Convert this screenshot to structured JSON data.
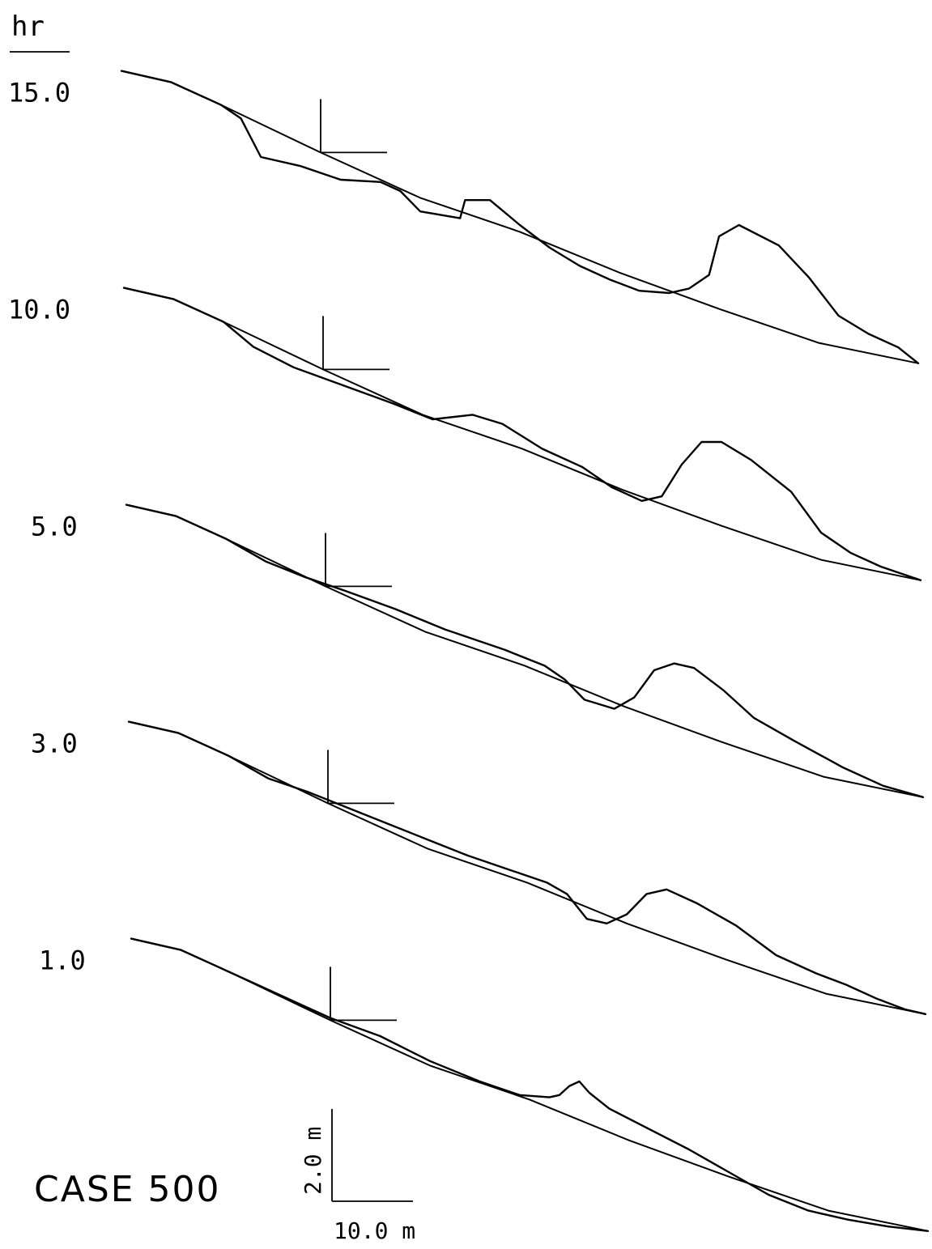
{
  "unit_label": "hr",
  "case_label": "CASE 500",
  "scale_bar": {
    "vertical_label": "2.0 m",
    "horizontal_label": "10.0 m"
  },
  "chart_data": {
    "type": "line",
    "description_units": {
      "x": "m",
      "z": "m"
    },
    "panels": [
      {
        "time_label": "15.0",
        "initial": [
          [
            0,
            6.8
          ],
          [
            5,
            6.3
          ],
          [
            10,
            5.3
          ],
          [
            20,
            3.2
          ],
          [
            30,
            1.2
          ],
          [
            40,
            -0.3
          ],
          [
            50,
            -2.1
          ],
          [
            60,
            -3.7
          ],
          [
            70,
            -5.2
          ],
          [
            80,
            -6.1
          ]
        ],
        "profile": [
          [
            0,
            6.8
          ],
          [
            5,
            6.3
          ],
          [
            10,
            5.3
          ],
          [
            12,
            4.7
          ],
          [
            14,
            3.0
          ],
          [
            18,
            2.6
          ],
          [
            22,
            2.0
          ],
          [
            26,
            1.9
          ],
          [
            28,
            1.5
          ],
          [
            30,
            0.6
          ],
          [
            34,
            0.3
          ],
          [
            34.5,
            1.1
          ],
          [
            37,
            1.1
          ],
          [
            40,
            0.0
          ],
          [
            43,
            -1.0
          ],
          [
            46,
            -1.8
          ],
          [
            49,
            -2.4
          ],
          [
            52,
            -2.9
          ],
          [
            55,
            -3.0
          ],
          [
            57,
            -2.8
          ],
          [
            59,
            -2.2
          ],
          [
            60,
            -0.5
          ],
          [
            62,
            0.0
          ],
          [
            66,
            -0.9
          ],
          [
            69,
            -2.3
          ],
          [
            72,
            -4.0
          ],
          [
            75,
            -4.8
          ],
          [
            78,
            -5.4
          ],
          [
            80,
            -6.1
          ]
        ]
      },
      {
        "time_label": "10.0",
        "initial": [
          [
            0,
            6.8
          ],
          [
            5,
            6.3
          ],
          [
            10,
            5.3
          ],
          [
            20,
            3.2
          ],
          [
            30,
            1.2
          ],
          [
            40,
            -0.3
          ],
          [
            50,
            -2.1
          ],
          [
            60,
            -3.7
          ],
          [
            70,
            -5.2
          ],
          [
            80,
            -6.1
          ]
        ],
        "profile": [
          [
            0,
            6.8
          ],
          [
            5,
            6.3
          ],
          [
            10,
            5.3
          ],
          [
            13,
            4.2
          ],
          [
            17,
            3.3
          ],
          [
            22,
            2.5
          ],
          [
            27,
            1.7
          ],
          [
            31,
            1.0
          ],
          [
            35,
            1.2
          ],
          [
            38,
            0.8
          ],
          [
            42,
            -0.3
          ],
          [
            46,
            -1.1
          ],
          [
            49,
            -2.0
          ],
          [
            52,
            -2.6
          ],
          [
            54,
            -2.4
          ],
          [
            56,
            -1.0
          ],
          [
            58,
            0.0
          ],
          [
            60,
            0.0
          ],
          [
            63,
            -0.8
          ],
          [
            67,
            -2.2
          ],
          [
            70,
            -4.0
          ],
          [
            73,
            -4.9
          ],
          [
            76,
            -5.5
          ],
          [
            80,
            -6.1
          ]
        ]
      },
      {
        "time_label": "5.0",
        "initial": [
          [
            0,
            6.8
          ],
          [
            5,
            6.3
          ],
          [
            10,
            5.3
          ],
          [
            20,
            3.2
          ],
          [
            30,
            1.2
          ],
          [
            40,
            -0.3
          ],
          [
            50,
            -2.1
          ],
          [
            60,
            -3.7
          ],
          [
            70,
            -5.2
          ],
          [
            80,
            -6.1
          ]
        ],
        "profile": [
          [
            0,
            6.8
          ],
          [
            5,
            6.3
          ],
          [
            10,
            5.3
          ],
          [
            14,
            4.3
          ],
          [
            18,
            3.6
          ],
          [
            22,
            3.0
          ],
          [
            27,
            2.2
          ],
          [
            32,
            1.3
          ],
          [
            38,
            0.4
          ],
          [
            42,
            -0.3
          ],
          [
            44,
            -0.9
          ],
          [
            46,
            -1.8
          ],
          [
            49,
            -2.2
          ],
          [
            51,
            -1.7
          ],
          [
            53,
            -0.5
          ],
          [
            55,
            -0.2
          ],
          [
            57,
            -0.4
          ],
          [
            60,
            -1.4
          ],
          [
            63,
            -2.6
          ],
          [
            67,
            -3.6
          ],
          [
            72,
            -4.8
          ],
          [
            76,
            -5.6
          ],
          [
            80,
            -6.1
          ]
        ]
      },
      {
        "time_label": "3.0",
        "initial": [
          [
            0,
            6.8
          ],
          [
            5,
            6.3
          ],
          [
            10,
            5.3
          ],
          [
            20,
            3.2
          ],
          [
            30,
            1.2
          ],
          [
            40,
            -0.3
          ],
          [
            50,
            -2.1
          ],
          [
            60,
            -3.7
          ],
          [
            70,
            -5.2
          ],
          [
            80,
            -6.1
          ]
        ],
        "profile": [
          [
            0,
            6.8
          ],
          [
            5,
            6.3
          ],
          [
            10,
            5.3
          ],
          [
            14,
            4.3
          ],
          [
            18,
            3.7
          ],
          [
            22,
            3.0
          ],
          [
            26,
            2.3
          ],
          [
            30,
            1.6
          ],
          [
            34,
            0.9
          ],
          [
            38,
            0.3
          ],
          [
            42,
            -0.3
          ],
          [
            44,
            -0.8
          ],
          [
            46,
            -1.9
          ],
          [
            48,
            -2.1
          ],
          [
            50,
            -1.7
          ],
          [
            52,
            -0.8
          ],
          [
            54,
            -0.6
          ],
          [
            57,
            -1.2
          ],
          [
            61,
            -2.2
          ],
          [
            65,
            -3.5
          ],
          [
            69,
            -4.3
          ],
          [
            72,
            -4.8
          ],
          [
            75,
            -5.4
          ],
          [
            78,
            -5.9
          ],
          [
            80,
            -6.1
          ]
        ]
      },
      {
        "time_label": "1.0",
        "initial": [
          [
            0,
            6.8
          ],
          [
            5,
            6.3
          ],
          [
            10,
            5.3
          ],
          [
            20,
            3.2
          ],
          [
            30,
            1.2
          ],
          [
            40,
            -0.3
          ],
          [
            50,
            -2.1
          ],
          [
            60,
            -3.7
          ],
          [
            70,
            -5.2
          ],
          [
            80,
            -6.1
          ]
        ],
        "profile": [
          [
            0,
            6.8
          ],
          [
            5,
            6.3
          ],
          [
            10,
            5.3
          ],
          [
            15,
            4.3
          ],
          [
            20,
            3.3
          ],
          [
            25,
            2.5
          ],
          [
            30,
            1.4
          ],
          [
            35,
            0.5
          ],
          [
            39,
            -0.1
          ],
          [
            42,
            -0.2
          ],
          [
            43,
            -0.1
          ],
          [
            44,
            0.3
          ],
          [
            45,
            0.5
          ],
          [
            46,
            0.0
          ],
          [
            48,
            -0.7
          ],
          [
            52,
            -1.6
          ],
          [
            56,
            -2.5
          ],
          [
            60,
            -3.5
          ],
          [
            64,
            -4.5
          ],
          [
            68,
            -5.2
          ],
          [
            72,
            -5.6
          ],
          [
            76,
            -5.9
          ],
          [
            80,
            -6.1
          ]
        ]
      }
    ]
  }
}
